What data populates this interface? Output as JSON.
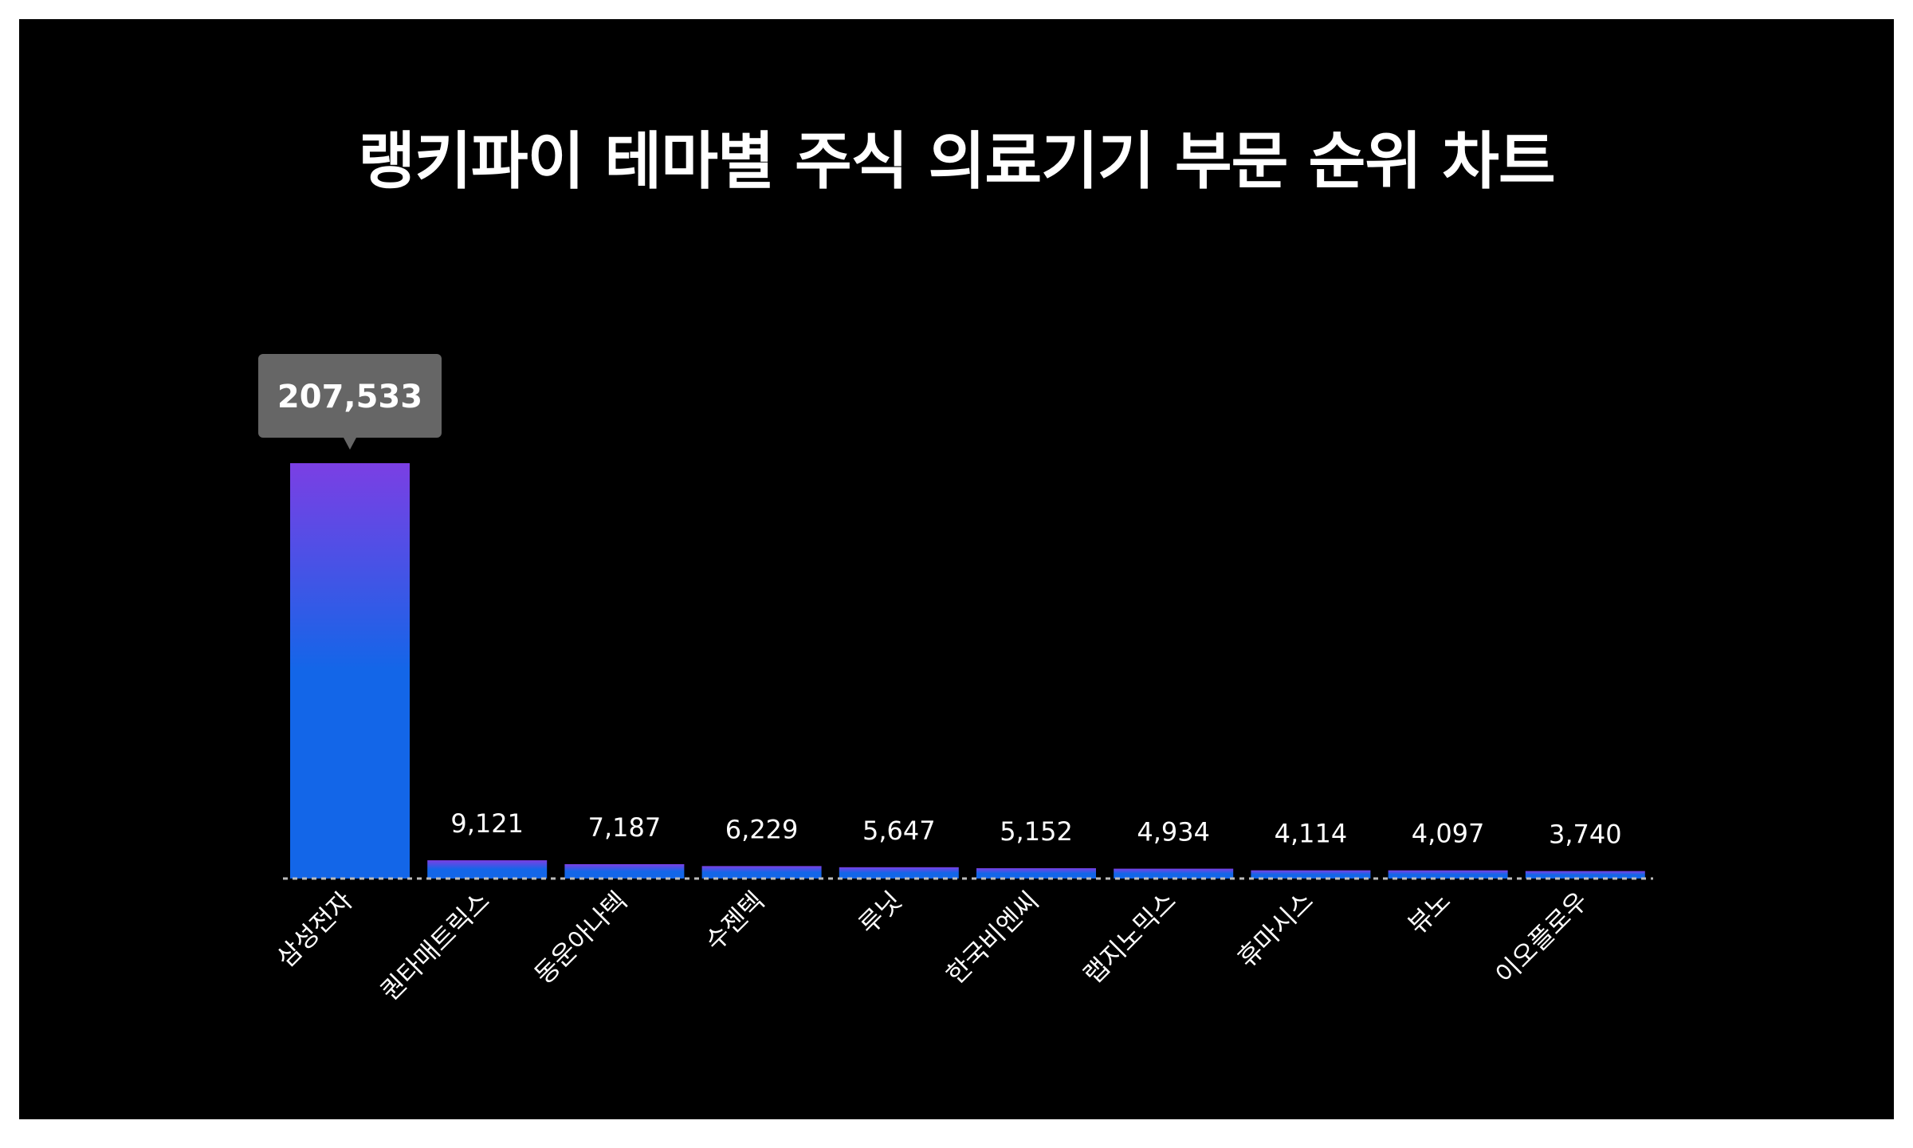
{
  "chart_data": {
    "type": "bar",
    "title": "랭키파이 테마별 주식 의료기기 부문 순위 차트",
    "categories": [
      "삼성전자",
      "퀀타매트릭스",
      "동운아나텍",
      "수젠텍",
      "루닛",
      "한국비엔씨",
      "랩지노믹스",
      "휴마시스",
      "뷰노",
      "이오플로우"
    ],
    "values": [
      207533,
      9121,
      7187,
      6229,
      5647,
      5152,
      4934,
      4114,
      4097,
      3740
    ],
    "value_labels": [
      "207,533",
      "9,121",
      "7,187",
      "6,229",
      "5,647",
      "5,152",
      "4,934",
      "4,114",
      "4,097",
      "3,740"
    ],
    "highlight_index": 0,
    "ylim": [
      0,
      207533
    ],
    "grid": false,
    "legend": "none",
    "colors": {
      "background": "#000000",
      "bar_top": "#7B3FE4",
      "bar_bottom": "#1366E8",
      "tooltip": "#666666",
      "text": "#FFFFFF"
    }
  }
}
